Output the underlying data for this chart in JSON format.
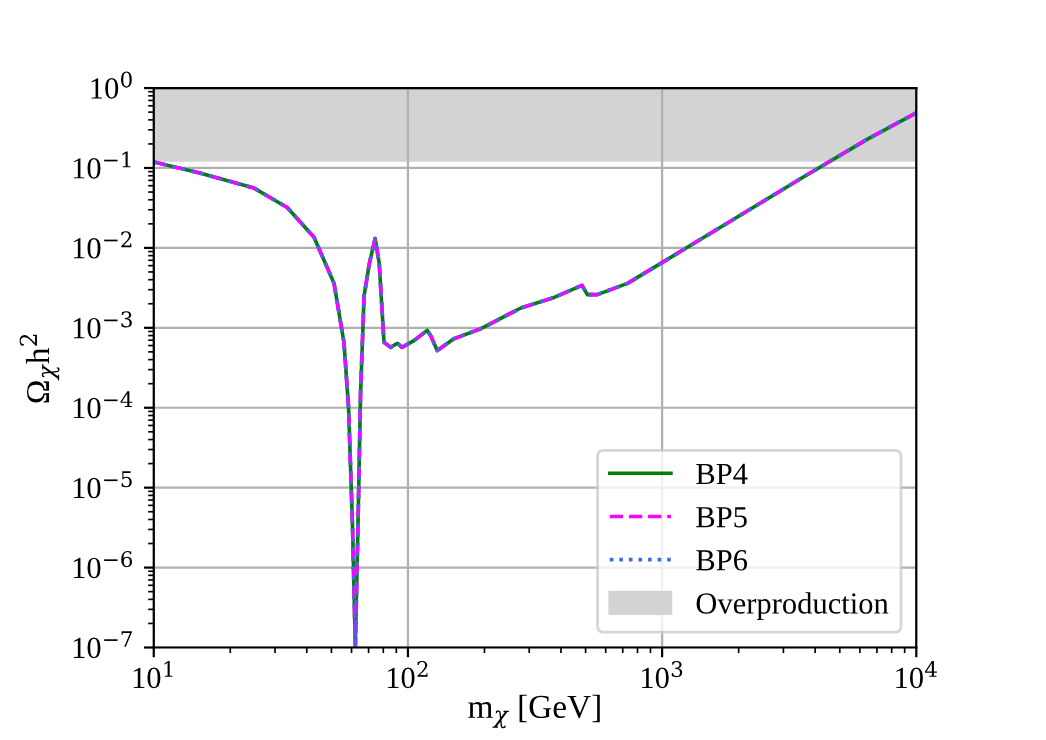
{
  "chart_data": {
    "type": "line",
    "xlabel": "m$_{χ}$ [GeV]",
    "ylabel": "Ω$_{χ}$h$^{2}$",
    "log": "xy",
    "grid": true,
    "legend": "bottom right",
    "x": [
      10,
      15.3,
      24.8,
      33.5,
      42.7,
      51.2,
      56,
      58.4,
      60.5,
      62.1,
      63.6,
      65.1,
      67.2,
      70.5,
      74.3,
      77.1,
      80.5,
      85.5,
      90.9,
      94.7,
      105.6,
      119,
      122.8,
      130.4,
      151.7,
      193,
      278,
      376,
      484,
      508,
      556,
      731,
      988,
      1920,
      3515,
      6430,
      10000
    ],
    "series": [
      {
        "name": "BP4",
        "color": "#008000",
        "line_style": "solid",
        "values": [
          0.119,
          0.086,
          0.056,
          0.032,
          0.0136,
          0.0036,
          0.00066,
          0.0001,
          3.4e-06,
          1e-07,
          3.4e-06,
          0.00015,
          0.0025,
          0.0064,
          0.0131,
          0.0064,
          0.00066,
          0.00057,
          0.00064,
          0.00057,
          0.00069,
          0.00093,
          0.0008,
          0.00052,
          0.00073,
          0.00097,
          0.00177,
          0.0024,
          0.0034,
          0.0026,
          0.0026,
          0.0036,
          0.0064,
          0.023,
          0.074,
          0.23,
          0.49
        ]
      },
      {
        "name": "BP5",
        "color": "#ff00ff",
        "line_style": "dashed",
        "values": [
          0.119,
          0.086,
          0.056,
          0.032,
          0.0136,
          0.0036,
          0.00066,
          0.0001,
          3.4e-06,
          1e-07,
          3.4e-06,
          0.00015,
          0.0025,
          0.0064,
          0.0131,
          0.0064,
          0.00066,
          0.00057,
          0.00064,
          0.00057,
          0.00069,
          0.00093,
          0.0008,
          0.00052,
          0.00073,
          0.00097,
          0.00177,
          0.0024,
          0.0034,
          0.0026,
          0.0026,
          0.0036,
          0.0064,
          0.023,
          0.074,
          0.23,
          0.49
        ]
      },
      {
        "name": "BP6",
        "color": "#4169e1",
        "line_style": "dotted",
        "values": [
          0.119,
          0.086,
          0.056,
          0.032,
          0.0136,
          0.0036,
          0.00066,
          0.0001,
          3.4e-06,
          1e-07,
          3.4e-06,
          0.00015,
          0.0025,
          0.0064,
          0.0131,
          0.0064,
          0.00066,
          0.00057,
          0.00064,
          0.00057,
          0.00069,
          0.00093,
          0.0008,
          0.00052,
          0.00073,
          0.00097,
          0.00177,
          0.0024,
          0.0034,
          0.0026,
          0.0026,
          0.0036,
          0.0064,
          0.023,
          0.074,
          0.23,
          0.49
        ]
      }
    ],
    "bands": [
      {
        "axis": "y",
        "from": 0.12,
        "to": 1,
        "label": "Overproduction",
        "color": "#d3d3d3"
      }
    ],
    "xlim": [
      10,
      10000
    ],
    "ylim": [
      1e-07,
      1
    ],
    "xticks": [
      {
        "value": 10,
        "label": "10$^{1}$"
      },
      {
        "value": 100,
        "label": "10$^{2}$"
      },
      {
        "value": 1000,
        "label": "10$^{3}$"
      },
      {
        "value": 10000,
        "label": "10$^{4}$"
      }
    ],
    "yticks": [
      {
        "value": 1e-07,
        "label": "10$^{−7}$"
      },
      {
        "value": 1e-06,
        "label": "10$^{−6}$"
      },
      {
        "value": 1e-05,
        "label": "10$^{−5}$"
      },
      {
        "value": 0.0001,
        "label": "10$^{−4}$"
      },
      {
        "value": 0.001,
        "label": "10$^{−3}$"
      },
      {
        "value": 0.01,
        "label": "10$^{−2}$"
      },
      {
        "value": 0.1,
        "label": "10$^{−1}$"
      },
      {
        "value": 1,
        "label": "10$^{0}$"
      }
    ]
  }
}
